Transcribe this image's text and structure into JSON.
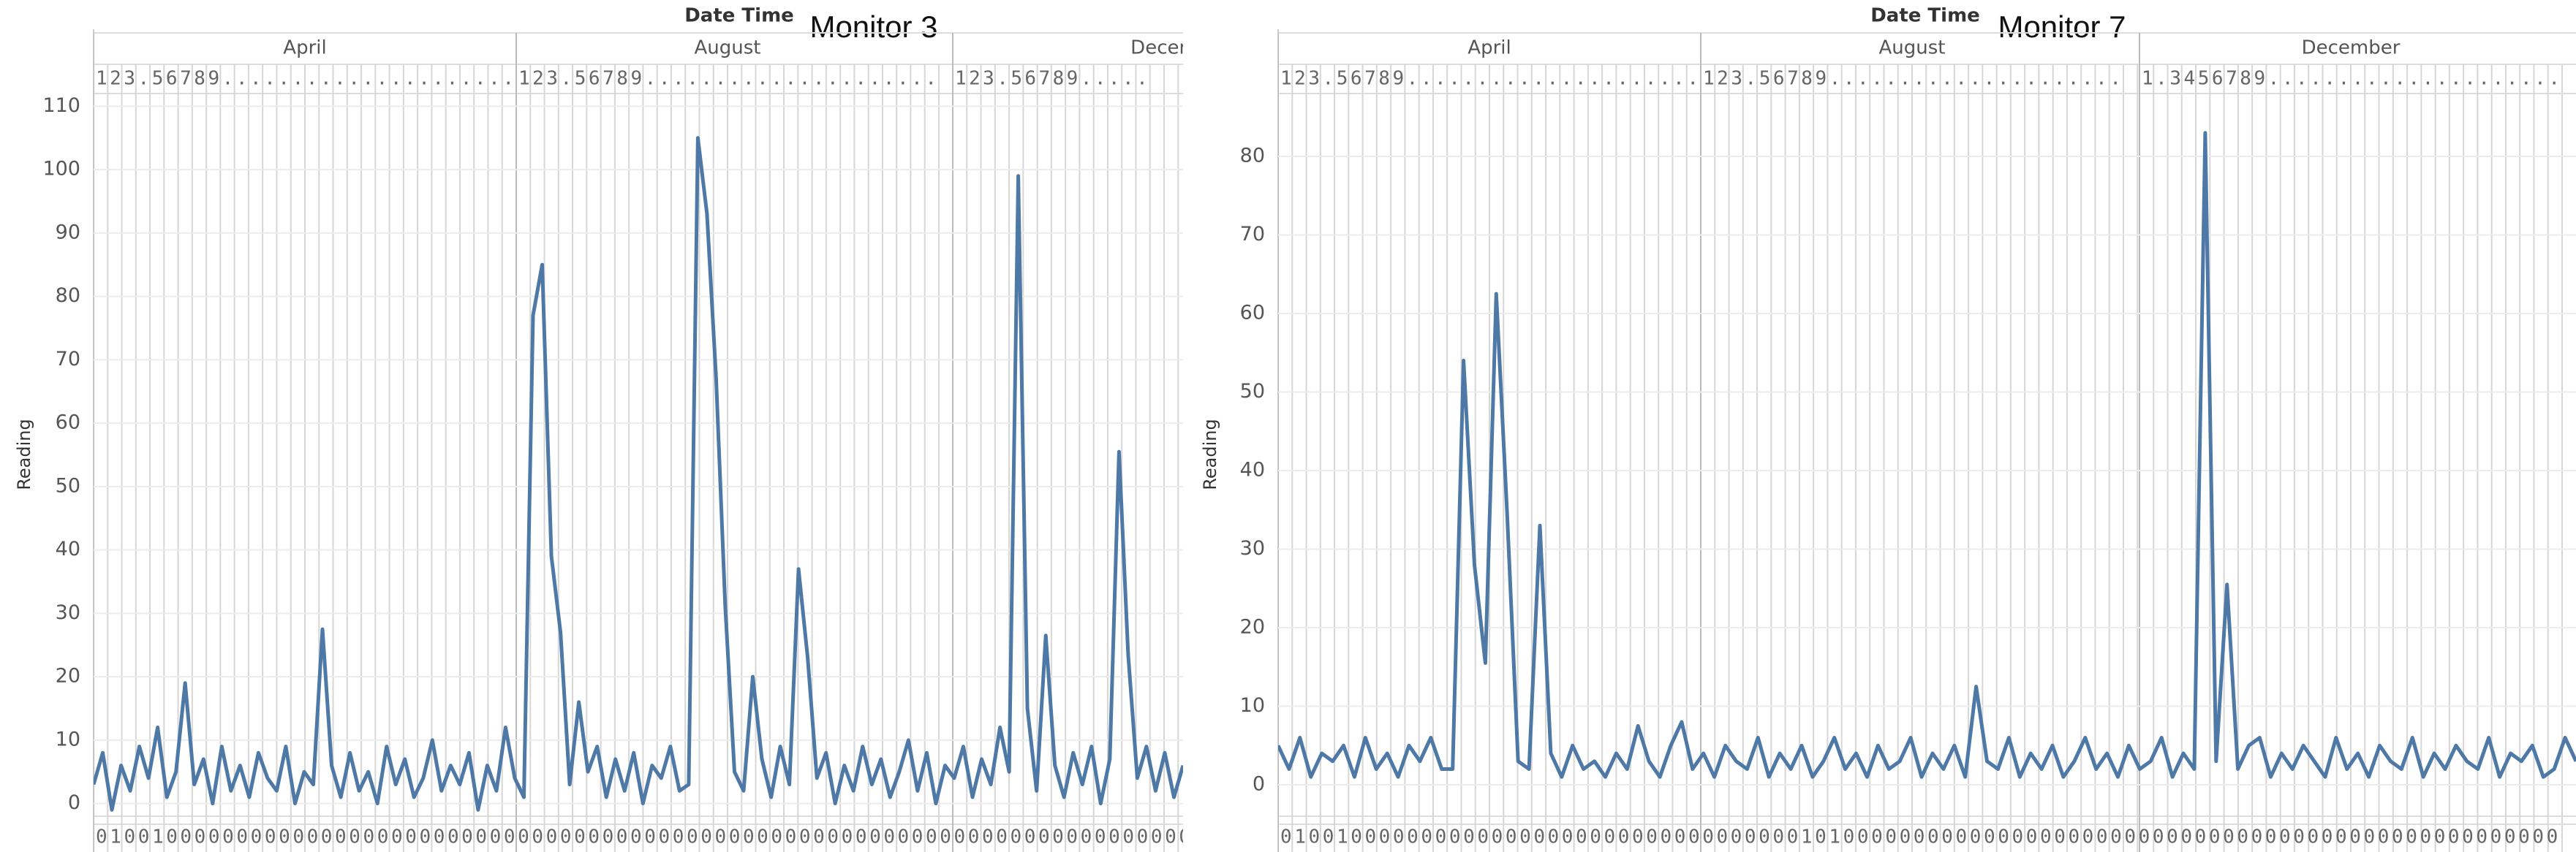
{
  "chart_data": [
    {
      "type": "line",
      "title": "Monitor 3",
      "x_header": "Date Time",
      "y_label": "Reading",
      "months": [
        "April",
        "August",
        "Decem"
      ],
      "day_labels": [
        "123.56789.....................",
        "123.56789.....................",
        "123.56789....."
      ],
      "bottom_labels": "010010000000000000000000000000000000000000000000000000000000000000000000000000000000",
      "color": "#4e79a7",
      "ylim": [
        -2,
        112
      ],
      "yticks": [
        0,
        10,
        20,
        30,
        40,
        50,
        60,
        70,
        80,
        90,
        100,
        110
      ],
      "grid": true,
      "values": [
        3,
        8,
        -1,
        6,
        2,
        9,
        4,
        12,
        1,
        5,
        19,
        3,
        7,
        0,
        9,
        2,
        6,
        1,
        8,
        4,
        2,
        9,
        0,
        5,
        3,
        27.5,
        6,
        1,
        8,
        2,
        5,
        0,
        9,
        3,
        7,
        1,
        4,
        10,
        2,
        6,
        3,
        8,
        -1,
        6,
        2,
        12,
        4,
        1,
        77,
        85,
        39,
        27,
        3,
        16,
        5,
        9,
        1,
        7,
        2,
        8,
        0,
        6,
        4,
        9,
        2,
        3,
        105,
        93,
        67,
        31,
        5,
        2,
        20,
        7,
        1,
        9,
        3,
        37,
        23,
        4,
        8,
        0,
        6,
        2,
        9,
        3,
        7,
        1,
        5,
        10,
        2,
        8,
        0,
        6,
        4,
        9,
        1,
        7,
        3,
        12,
        5,
        99,
        15,
        2,
        26.5,
        6,
        1,
        8,
        3,
        9,
        0,
        7,
        55.5,
        23.5,
        4,
        9,
        2,
        8,
        1,
        6
      ]
    },
    {
      "type": "line",
      "title": "Monitor 7",
      "x_header": "Date Time",
      "y_label": "Reading",
      "months": [
        "April",
        "August",
        "December"
      ],
      "day_labels": [
        "123.56789.....................",
        "123.56789.....................",
        "1.3456789....................."
      ],
      "bottom_labels": "0100100000000000000000000000000000000101000000000000000000000000000000000000000000000000000",
      "color": "#4e79a7",
      "ylim": [
        -4,
        88
      ],
      "yticks": [
        0,
        10,
        20,
        30,
        40,
        50,
        60,
        70,
        80
      ],
      "grid": true,
      "values": [
        5,
        2,
        6,
        1,
        4,
        3,
        5,
        1,
        6,
        2,
        4,
        1,
        5,
        3,
        6,
        2,
        2,
        54,
        28,
        15.5,
        62.5,
        34.5,
        3,
        2,
        33,
        4,
        1,
        5,
        2,
        3,
        1,
        4,
        2,
        7.5,
        3,
        1,
        5,
        8,
        2,
        4,
        1,
        5,
        3,
        2,
        6,
        1,
        4,
        2,
        5,
        1,
        3,
        6,
        2,
        4,
        1,
        5,
        2,
        3,
        6,
        1,
        4,
        2,
        5,
        1,
        12.5,
        3,
        2,
        6,
        1,
        4,
        2,
        5,
        1,
        3,
        6,
        2,
        4,
        1,
        5,
        2,
        3,
        6,
        1,
        4,
        2,
        83,
        3,
        25.5,
        2,
        5,
        6,
        1,
        4,
        2,
        5,
        3,
        1,
        6,
        2,
        4,
        1,
        5,
        3,
        2,
        6,
        1,
        4,
        2,
        5,
        3,
        2,
        6,
        1,
        4,
        3,
        5,
        1,
        2,
        6,
        3
      ]
    }
  ]
}
